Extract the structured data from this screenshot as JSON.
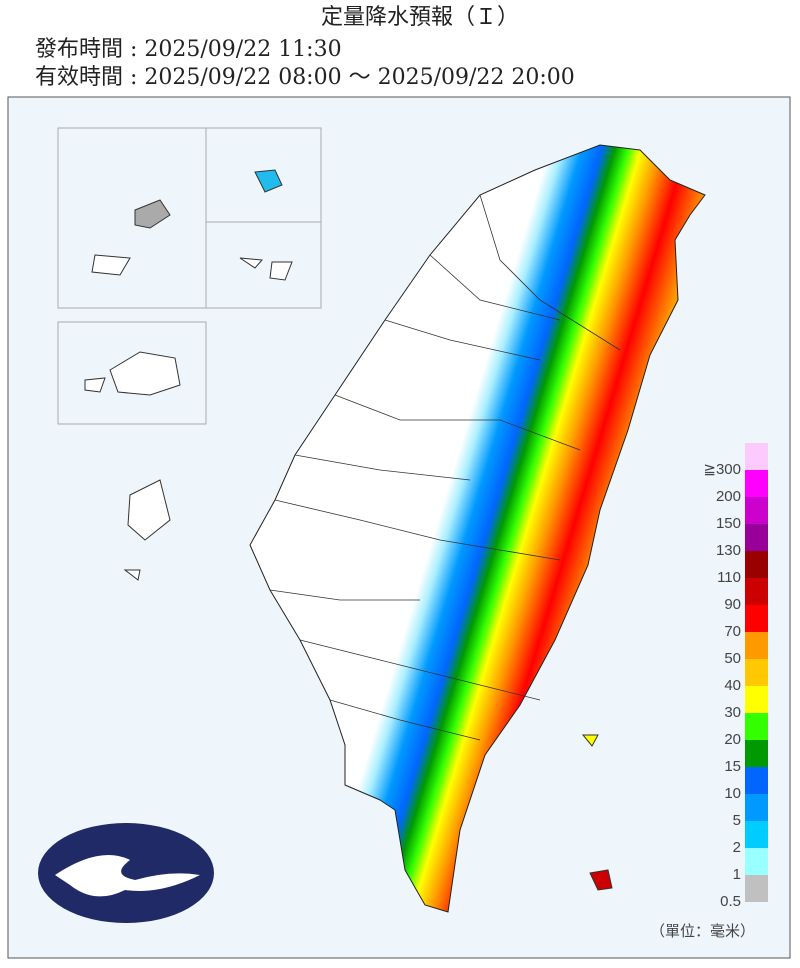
{
  "header": {
    "title": "定量降水預報（Ｉ）",
    "issue_time": "發布時間 : 2025/09/22 11:30",
    "valid_time": "有效時間 : 2025/09/22 08:00 ～ 2025/09/22 20:00"
  },
  "legend": {
    "items": [
      {
        "label": "≧300",
        "color": "#fdcafe"
      },
      {
        "label": "200",
        "color": "#ff00ff"
      },
      {
        "label": "150",
        "color": "#cc00cc"
      },
      {
        "label": "130",
        "color": "#990099"
      },
      {
        "label": "110",
        "color": "#990000"
      },
      {
        "label": "90",
        "color": "#cc0000"
      },
      {
        "label": "70",
        "color": "#ff0000"
      },
      {
        "label": "50",
        "color": "#ff9900"
      },
      {
        "label": "40",
        "color": "#ffc800"
      },
      {
        "label": "30",
        "color": "#ffff00"
      },
      {
        "label": "20",
        "color": "#33ff00"
      },
      {
        "label": "15",
        "color": "#009900"
      },
      {
        "label": "10",
        "color": "#0066ff"
      },
      {
        "label": "5",
        "color": "#0099ff"
      },
      {
        "label": "2",
        "color": "#00ccff"
      },
      {
        "label": "1",
        "color": "#99ffff"
      },
      {
        "label": "0.5",
        "color": "#c0c0c0"
      }
    ],
    "unit": "（單位：毫米）"
  }
}
